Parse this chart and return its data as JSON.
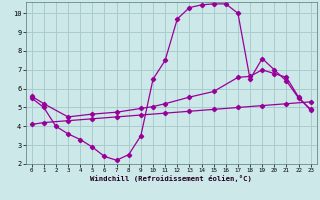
{
  "xlabel": "Windchill (Refroidissement éolien,°C)",
  "bg_color": "#cce8e8",
  "line_color": "#990099",
  "grid_color": "#aacccc",
  "xlim": [
    -0.5,
    23.5
  ],
  "ylim": [
    2,
    10.6
  ],
  "yticks": [
    2,
    3,
    4,
    5,
    6,
    7,
    8,
    9,
    10
  ],
  "xticks": [
    0,
    1,
    2,
    3,
    4,
    5,
    6,
    7,
    8,
    9,
    10,
    11,
    12,
    13,
    14,
    15,
    16,
    17,
    18,
    19,
    20,
    21,
    22,
    23
  ],
  "line1_x": [
    0,
    1,
    2,
    3,
    4,
    5,
    6,
    7,
    8,
    9,
    10,
    11,
    12,
    13,
    14,
    15,
    16,
    17,
    18,
    19,
    20,
    21,
    22,
    23
  ],
  "line1_y": [
    5.5,
    5.0,
    4.0,
    3.6,
    3.3,
    2.9,
    2.4,
    2.2,
    2.5,
    3.5,
    6.5,
    7.5,
    9.7,
    10.3,
    10.45,
    10.5,
    10.5,
    10.0,
    6.5,
    7.6,
    7.0,
    6.4,
    5.5,
    4.9
  ],
  "line2_x": [
    0,
    1,
    3,
    5,
    7,
    9,
    10,
    11,
    13,
    15,
    17,
    18,
    19,
    20,
    21,
    22,
    23
  ],
  "line2_y": [
    5.6,
    5.2,
    4.5,
    4.65,
    4.75,
    4.95,
    5.05,
    5.2,
    5.55,
    5.85,
    6.6,
    6.65,
    7.0,
    6.8,
    6.6,
    5.55,
    4.85
  ],
  "line3_x": [
    0,
    1,
    3,
    5,
    7,
    9,
    11,
    13,
    15,
    17,
    19,
    21,
    23
  ],
  "line3_y": [
    4.1,
    4.2,
    4.3,
    4.4,
    4.5,
    4.6,
    4.7,
    4.8,
    4.9,
    5.0,
    5.1,
    5.2,
    5.3
  ]
}
